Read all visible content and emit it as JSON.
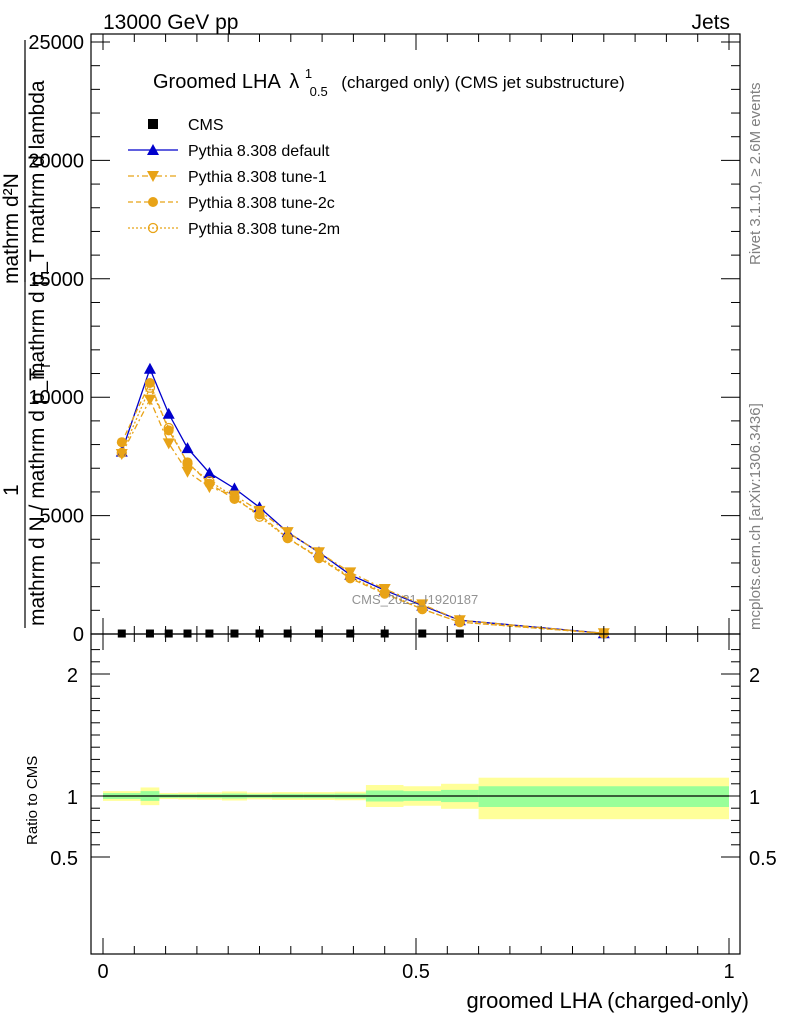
{
  "header": {
    "energy_label": "13000 GeV pp",
    "category_label": "Jets"
  },
  "side_labels": {
    "rivet": "Rivet 3.1.10, ≥ 2.6M events",
    "mcplots": "mcplots.cern.ch [arXiv:1306.3436]"
  },
  "watermark": "CMS_2021_I1920187",
  "chart_data": [
    {
      "type": "line",
      "title_main": "Groomed LHA",
      "title_symbol": "λ",
      "title_sup": "1",
      "title_sub": "0.5",
      "title_suffix": "(charged only) (CMS jet substructure)",
      "ylabel_numer": "mathrm d²N",
      "ylabel_denom": "mathrm d p_T mathrm d lambda",
      "ylabel_one": "1",
      "ylabel_lower": "mathrm d N / mathrm d p_T",
      "ylabel_lower_sub": "T",
      "xlim": [
        0,
        1
      ],
      "ylim": [
        0,
        25500
      ],
      "y_ticks": [
        0,
        5000,
        10000,
        15000,
        20000,
        25000
      ],
      "y_tick_labels": [
        "0",
        "5000",
        "10000",
        "15000",
        "20000",
        "25000"
      ],
      "x": [
        0.03,
        0.075,
        0.105,
        0.135,
        0.17,
        0.21,
        0.25,
        0.295,
        0.345,
        0.395,
        0.45,
        0.51,
        0.57,
        0.8
      ],
      "series": [
        {
          "name": "CMS",
          "marker": "square",
          "color": "#000000",
          "values": [
            20,
            20,
            20,
            20,
            20,
            20,
            20,
            20,
            20,
            20,
            20,
            20,
            20,
            null
          ]
        },
        {
          "name": "Pythia 8.308 default",
          "marker": "triangle-up",
          "color": "#0000cc",
          "dash": "",
          "values": [
            7700,
            11200,
            9300,
            7850,
            6800,
            6150,
            5350,
            4300,
            3450,
            2500,
            1850,
            1200,
            580,
            30
          ]
        },
        {
          "name": "Pythia 8.308 tune-1",
          "marker": "triangle-down",
          "color": "#e8a317",
          "dash": "6,3,2,3",
          "values": [
            7600,
            9900,
            8050,
            6850,
            6200,
            5850,
            5200,
            4300,
            3450,
            2600,
            1900,
            1250,
            580,
            30
          ]
        },
        {
          "name": "Pythia 8.308 tune-2c",
          "marker": "circle",
          "color": "#e8a317",
          "dash": "5,3",
          "values": [
            8100,
            10600,
            8600,
            7250,
            6350,
            5700,
            5050,
            4050,
            3200,
            2350,
            1700,
            1050,
            500,
            25
          ]
        },
        {
          "name": "Pythia 8.308 tune-2m",
          "marker": "circle-open",
          "color": "#e8a317",
          "dash": "2,2",
          "values": [
            7650,
            10400,
            8700,
            7200,
            6450,
            5800,
            4950,
            4050,
            3250,
            2400,
            1750,
            1050,
            500,
            25
          ]
        }
      ]
    },
    {
      "type": "area",
      "ylabel": "Ratio to CMS",
      "xlabel": "groomed LHA (charged-only)",
      "xlim": [
        0,
        1
      ],
      "ylim": [
        0.35,
        2.25
      ],
      "x_ticks": [
        0,
        0.5,
        1
      ],
      "x_tick_labels": [
        "0",
        "0.5",
        "1"
      ],
      "y_ticks": [
        0.5,
        1,
        2
      ],
      "y_tick_labels": [
        "0.5",
        "1",
        "2"
      ],
      "bins": [
        {
          "x0": 0.0,
          "x1": 0.06,
          "inner": [
            0.976,
            1.024
          ],
          "outer": [
            0.96,
            1.04
          ]
        },
        {
          "x0": 0.06,
          "x1": 0.09,
          "inner": [
            0.96,
            1.04
          ],
          "outer": [
            0.925,
            1.07
          ]
        },
        {
          "x0": 0.09,
          "x1": 0.12,
          "inner": [
            0.985,
            1.015
          ],
          "outer": [
            0.975,
            1.025
          ]
        },
        {
          "x0": 0.12,
          "x1": 0.15,
          "inner": [
            0.985,
            1.015
          ],
          "outer": [
            0.972,
            1.028
          ]
        },
        {
          "x0": 0.15,
          "x1": 0.19,
          "inner": [
            0.983,
            1.017
          ],
          "outer": [
            0.97,
            1.03
          ]
        },
        {
          "x0": 0.19,
          "x1": 0.23,
          "inner": [
            0.98,
            1.02
          ],
          "outer": [
            0.963,
            1.037
          ]
        },
        {
          "x0": 0.23,
          "x1": 0.27,
          "inner": [
            0.985,
            1.015
          ],
          "outer": [
            0.972,
            1.028
          ]
        },
        {
          "x0": 0.27,
          "x1": 0.32,
          "inner": [
            0.982,
            1.018
          ],
          "outer": [
            0.968,
            1.032
          ]
        },
        {
          "x0": 0.32,
          "x1": 0.37,
          "inner": [
            0.982,
            1.018
          ],
          "outer": [
            0.968,
            1.032
          ]
        },
        {
          "x0": 0.37,
          "x1": 0.42,
          "inner": [
            0.98,
            1.02
          ],
          "outer": [
            0.965,
            1.035
          ]
        },
        {
          "x0": 0.42,
          "x1": 0.48,
          "inner": [
            0.955,
            1.045
          ],
          "outer": [
            0.91,
            1.09
          ]
        },
        {
          "x0": 0.48,
          "x1": 0.54,
          "inner": [
            0.96,
            1.04
          ],
          "outer": [
            0.92,
            1.08
          ]
        },
        {
          "x0": 0.54,
          "x1": 0.6,
          "inner": [
            0.95,
            1.05
          ],
          "outer": [
            0.895,
            1.1
          ]
        },
        {
          "x0": 0.6,
          "x1": 1.0,
          "inner": [
            0.91,
            1.08
          ],
          "outer": [
            0.81,
            1.15
          ]
        }
      ]
    }
  ]
}
